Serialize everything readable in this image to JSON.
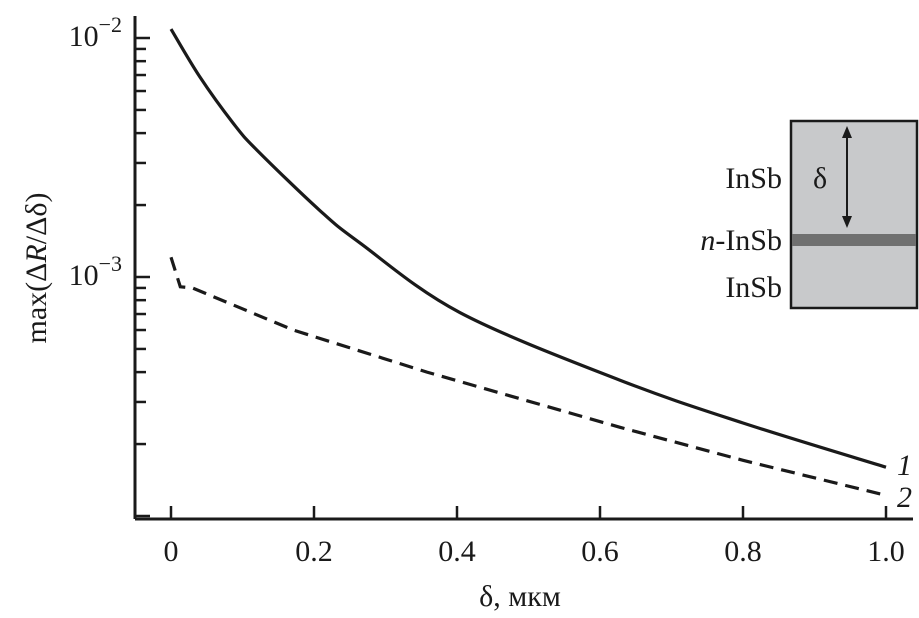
{
  "chart_data": {
    "type": "line",
    "title": "",
    "xlabel": "δ, мкм",
    "ylabel_prefix": "max(Δ",
    "ylabel_italic": "R",
    "ylabel_suffix": "/Δδ)",
    "xlim": [
      -0.05,
      1.04
    ],
    "ylim": [
      9.77e-05,
      0.0123
    ],
    "yscale": "log",
    "grid": false,
    "x_ticks": [
      0,
      0.2,
      0.4,
      0.6,
      0.8,
      1.0
    ],
    "x_tick_labels": [
      "0",
      "0.2",
      "0.4",
      "0.6",
      "0.8",
      "1.0"
    ],
    "y_major_ticks": [
      0.001,
      0.01
    ],
    "y_tick_labels": [
      {
        "base": "10",
        "exp": "−3"
      },
      {
        "base": "10",
        "exp": "−2"
      }
    ],
    "series": [
      {
        "name": "1",
        "style": "solid",
        "color": "#1a1a1a",
        "x": [
          0,
          0.04,
          0.087,
          0.12,
          0.208,
          0.264,
          0.404,
          0.628,
          0.8,
          1.0
        ],
        "y": [
          0.0109,
          0.0069,
          0.0044,
          0.0034,
          0.0019,
          0.00139,
          0.00071,
          0.00037,
          0.000245,
          0.00016
        ]
      },
      {
        "name": "2",
        "style": "dashed",
        "color": "#1a1a1a",
        "x": [
          0,
          0.013,
          0.03,
          0.171,
          0.358,
          0.628,
          0.8,
          1.0
        ],
        "y": [
          0.00121,
          0.00091,
          0.0009,
          0.0006,
          0.0004,
          0.000235,
          0.000171,
          0.000122
        ]
      }
    ],
    "inset": {
      "layer_top": "InSb",
      "layer_mid_italic": "n",
      "layer_mid_rest": "-InSb",
      "layer_bottom": "InSb",
      "arrow_label": "δ",
      "fill_color": "#c8c9cb",
      "band_color": "#707070"
    }
  }
}
